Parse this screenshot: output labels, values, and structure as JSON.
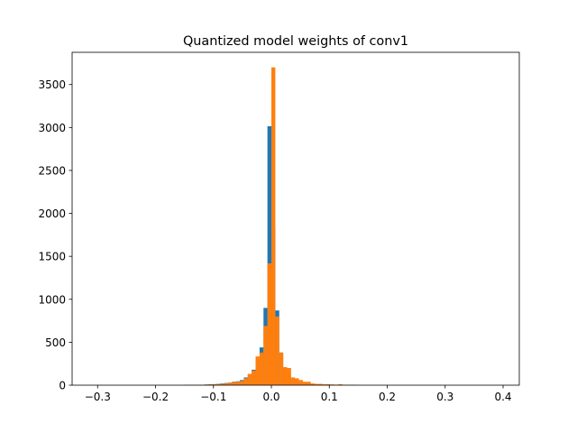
{
  "chart_data": {
    "type": "histogram",
    "title": "Quantized model weights of conv1",
    "xlabel": "",
    "ylabel": "",
    "xlim": [
      -0.344,
      0.428
    ],
    "ylim": [
      0,
      3875
    ],
    "xticks": [
      "−0.3",
      "−0.2",
      "−0.1",
      "0.0",
      "0.1",
      "0.2",
      "0.3",
      "0.4"
    ],
    "xtick_values": [
      -0.3,
      -0.2,
      -0.1,
      0.0,
      0.1,
      0.2,
      0.3,
      0.4
    ],
    "yticks": [
      "0",
      "500",
      "1000",
      "1500",
      "2000",
      "2500",
      "3000",
      "3500"
    ],
    "ytick_values": [
      0,
      500,
      1000,
      1500,
      2000,
      2500,
      3000,
      3500
    ],
    "grid": false,
    "bin_edges_start": -0.1496,
    "bin_width": 0.0068,
    "series": [
      {
        "color": "#1f77b4",
        "counts": [
          5,
          5,
          5,
          5,
          5,
          8,
          10,
          12,
          15,
          20,
          25,
          30,
          40,
          45,
          60,
          90,
          130,
          180,
          280,
          440,
          900,
          3015,
          1840,
          870,
          380,
          210,
          100,
          80,
          60,
          40,
          30,
          20,
          15,
          12,
          10,
          8,
          8,
          6,
          5,
          10,
          5,
          3,
          3,
          2
        ]
      },
      {
        "color": "#ff7f0e",
        "counts": [
          5,
          5,
          5,
          5,
          5,
          6,
          8,
          10,
          12,
          15,
          20,
          30,
          35,
          40,
          50,
          80,
          130,
          170,
          335,
          380,
          690,
          1418,
          3700,
          800,
          380,
          210,
          200,
          90,
          80,
          60,
          40,
          40,
          20,
          15,
          15,
          10,
          12,
          8,
          6,
          10,
          5,
          4,
          3,
          2
        ]
      }
    ]
  }
}
